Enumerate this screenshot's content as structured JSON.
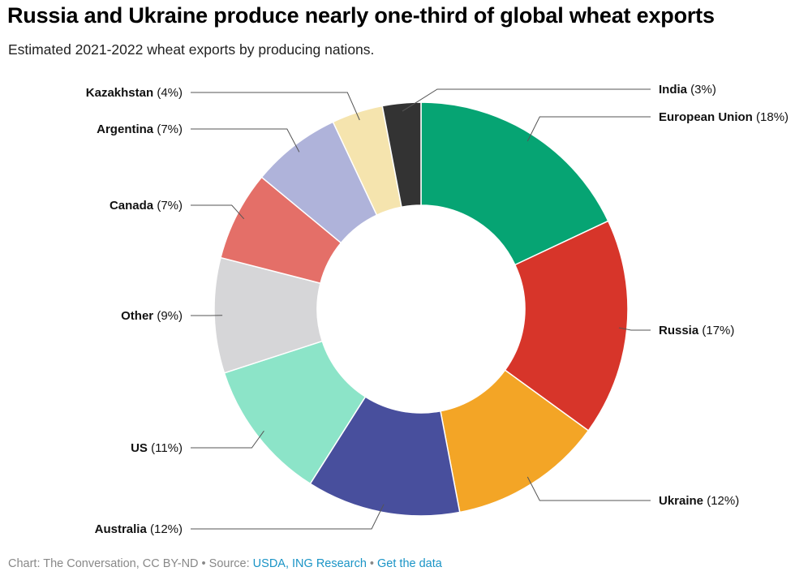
{
  "title": "Russia and Ukraine produce nearly one-third of global wheat exports",
  "subtitle": "Estimated 2021-2022 wheat exports by producing nations.",
  "chart_data": {
    "type": "pie",
    "donut": true,
    "slices": [
      {
        "label": "European Union",
        "value": 18,
        "pct_text": "(18%)",
        "color": "#06a473"
      },
      {
        "label": "Russia",
        "value": 17,
        "pct_text": "(17%)",
        "color": "#d7352a"
      },
      {
        "label": "Ukraine",
        "value": 12,
        "pct_text": "(12%)",
        "color": "#f3a526"
      },
      {
        "label": "Australia",
        "value": 12,
        "pct_text": "(12%)",
        "color": "#484f9d"
      },
      {
        "label": "US",
        "value": 11,
        "pct_text": "(11%)",
        "color": "#8ce4c8"
      },
      {
        "label": "Other",
        "value": 9,
        "pct_text": "(9%)",
        "color": "#d6d6d8"
      },
      {
        "label": "Canada",
        "value": 7,
        "pct_text": "(7%)",
        "color": "#e46f68"
      },
      {
        "label": "Argentina",
        "value": 7,
        "pct_text": "(7%)",
        "color": "#afb3da"
      },
      {
        "label": "Kazakhstan",
        "value": 4,
        "pct_text": "(4%)",
        "color": "#f5e4ae"
      },
      {
        "label": "India",
        "value": 3,
        "pct_text": "(3%)",
        "color": "#333333"
      }
    ]
  },
  "footer": {
    "credit": "Chart: The Conversation, CC BY-ND",
    "separator": "•",
    "source_label": "Source:",
    "source_link": "USDA, ING Research",
    "get_data": "Get the data"
  }
}
